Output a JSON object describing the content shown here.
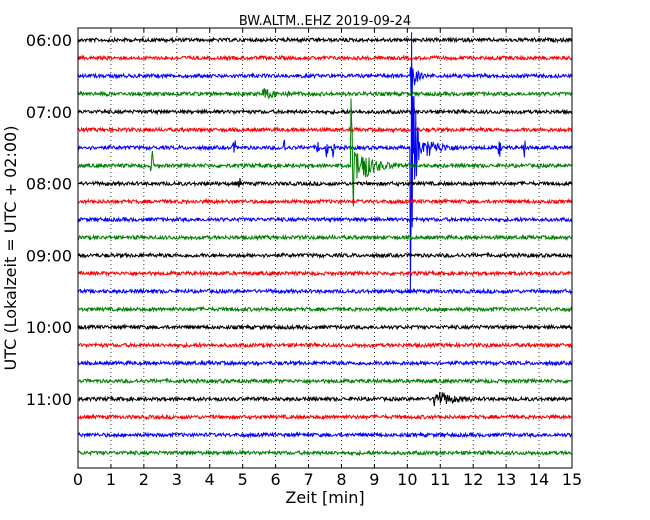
{
  "chart_data": {
    "type": "line",
    "title": "BW.ALTM..EHZ 2019-09-24",
    "xlabel": "Zeit  [min]",
    "ylabel": "UTC (Lokalzeit = UTC + 02:00)",
    "xlim": [
      0,
      15
    ],
    "x_ticks": [
      "0",
      "1",
      "2",
      "3",
      "4",
      "5",
      "6",
      "7",
      "8",
      "9",
      "10",
      "11",
      "12",
      "13",
      "14",
      "15"
    ],
    "y_ticks": [
      "06:00",
      "07:00",
      "08:00",
      "09:00",
      "10:00",
      "11:00"
    ],
    "grid": "dotted vertical",
    "trace_interval_min": 15,
    "color_cycle": [
      "#000000",
      "#ff0000",
      "#0000ff",
      "#008000"
    ],
    "traces": [
      {
        "start": "06:00",
        "color": "#000000"
      },
      {
        "start": "06:15",
        "color": "#ff0000"
      },
      {
        "start": "06:30",
        "color": "#0000ff"
      },
      {
        "start": "06:45",
        "color": "#008000"
      },
      {
        "start": "07:00",
        "color": "#000000"
      },
      {
        "start": "07:15",
        "color": "#ff0000"
      },
      {
        "start": "07:30",
        "color": "#0000ff"
      },
      {
        "start": "07:45",
        "color": "#008000"
      },
      {
        "start": "08:00",
        "color": "#000000"
      },
      {
        "start": "08:15",
        "color": "#ff0000"
      },
      {
        "start": "08:30",
        "color": "#0000ff"
      },
      {
        "start": "08:45",
        "color": "#008000"
      },
      {
        "start": "09:00",
        "color": "#000000"
      },
      {
        "start": "09:15",
        "color": "#ff0000"
      },
      {
        "start": "09:30",
        "color": "#0000ff"
      },
      {
        "start": "09:45",
        "color": "#008000"
      },
      {
        "start": "10:00",
        "color": "#000000"
      },
      {
        "start": "10:15",
        "color": "#ff0000"
      },
      {
        "start": "10:30",
        "color": "#0000ff"
      },
      {
        "start": "10:45",
        "color": "#008000"
      },
      {
        "start": "11:00",
        "color": "#000000"
      },
      {
        "start": "11:15",
        "color": "#ff0000"
      },
      {
        "start": "11:30",
        "color": "#0000ff"
      },
      {
        "start": "11:45",
        "color": "#008000"
      }
    ],
    "events": [
      {
        "trace": 2,
        "type": "burst",
        "at_min": 10.1,
        "amplitude": 28
      },
      {
        "trace": 6,
        "type": "burst",
        "at_min": 10.1,
        "amplitude": 150
      },
      {
        "trace": 6,
        "type": "spikes",
        "at_min": [
          4.75,
          6.25,
          7.3,
          7.55,
          7.75,
          12.8,
          13.55
        ],
        "amplitude": 10
      },
      {
        "trace": 6,
        "type": "coda",
        "at_min": 10.6,
        "amplitude": 8
      },
      {
        "trace": 7,
        "type": "burst",
        "at_min": 8.3,
        "amplitude": 70
      },
      {
        "trace": 7,
        "type": "coda",
        "at_min": 8.6,
        "amplitude": 14
      },
      {
        "trace": 7,
        "type": "spikes",
        "at_min": [
          2.25
        ],
        "amplitude": 16
      },
      {
        "trace": 3,
        "type": "coda",
        "at_min": 5.6,
        "amplitude": 5
      },
      {
        "trace": 8,
        "type": "spikes",
        "at_min": [
          4.9
        ],
        "amplitude": 6
      },
      {
        "trace": 20,
        "type": "coda",
        "at_min": 10.8,
        "amplitude": 10
      }
    ]
  }
}
